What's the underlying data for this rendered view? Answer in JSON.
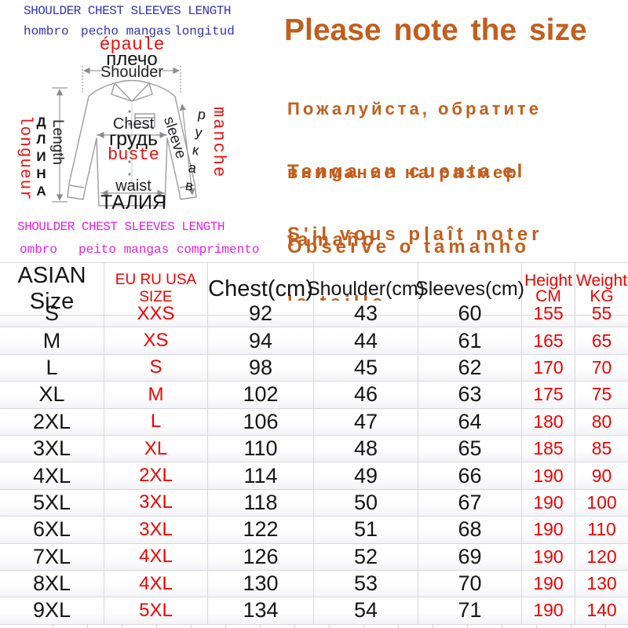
{
  "colors": {
    "blue_words": "#3232bb",
    "magenta_words": "#e81ee8",
    "red_labels": "#ee1111",
    "orange_notices": "#c25e1d",
    "table_red": "#f20000",
    "grid_line": "#d6d6de"
  },
  "diagram": {
    "header_en_blue": "SHOULDER CHEST SLEEVES LENGTH",
    "header_es_blue": [
      "hombro",
      "pecho mangas",
      "longitud"
    ],
    "footer_en_magenta": "SHOULDER CHEST SLEEVES LENGTH",
    "footer_pt_magenta": [
      "ombro",
      "peito mangas comprimento"
    ],
    "shoulder": {
      "fr": "épaule",
      "ru": "плечо",
      "en": "Shoulder"
    },
    "length": {
      "fr": "longueur",
      "ru": "ДЛИНА",
      "en": "Length"
    },
    "chest": {
      "en": "Chest",
      "ru": "грудь",
      "fr": "buste"
    },
    "waist": {
      "en": "waist",
      "ru": "ТАЛИЯ"
    },
    "sleeve": {
      "en": "sleeve",
      "ru": "рукав",
      "fr": "manche"
    }
  },
  "notices": {
    "en": "Please note the size",
    "ru": [
      "Пожалуйста, обратите",
      "внимание на размер"
    ],
    "es": [
      "Tenga en cuenta el",
      "tamaño"
    ],
    "fr": [
      "S'il vous plaît noter",
      "la taille"
    ],
    "pt": "Observe o tamanho"
  },
  "size_table": {
    "columns": [
      {
        "label": "ASIAN Size",
        "color": "black"
      },
      {
        "label": "EU RU USA SIZE",
        "color": "red"
      },
      {
        "label": "Chest(cm)",
        "color": "black"
      },
      {
        "label": "Shoulder(cm)",
        "color": "black"
      },
      {
        "label": "Sleeves(cm)",
        "color": "black"
      },
      {
        "label": "Height",
        "label2": "CM",
        "color": "red"
      },
      {
        "label": "Weight",
        "label2": "KG",
        "color": "red"
      }
    ],
    "red_value_columns": [
      1,
      5,
      6
    ],
    "rows": [
      [
        "S",
        "XXS",
        "92",
        "43",
        "60",
        "155",
        "55"
      ],
      [
        "M",
        "XS",
        "94",
        "44",
        "61",
        "165",
        "65"
      ],
      [
        "L",
        "S",
        "98",
        "45",
        "62",
        "170",
        "70"
      ],
      [
        "XL",
        "M",
        "102",
        "46",
        "63",
        "175",
        "75"
      ],
      [
        "2XL",
        "L",
        "106",
        "47",
        "64",
        "180",
        "80"
      ],
      [
        "3XL",
        "XL",
        "110",
        "48",
        "65",
        "185",
        "85"
      ],
      [
        "4XL",
        "2XL",
        "114",
        "49",
        "66",
        "190",
        "90"
      ],
      [
        "5XL",
        "3XL",
        "118",
        "50",
        "67",
        "190",
        "100"
      ],
      [
        "6XL",
        "3XL",
        "122",
        "51",
        "68",
        "190",
        "110"
      ],
      [
        "7XL",
        "4XL",
        "126",
        "52",
        "69",
        "190",
        "120"
      ],
      [
        "8XL",
        "4XL",
        "130",
        "53",
        "70",
        "190",
        "130"
      ],
      [
        "9XL",
        "5XL",
        "134",
        "54",
        "71",
        "190",
        "140"
      ]
    ]
  }
}
